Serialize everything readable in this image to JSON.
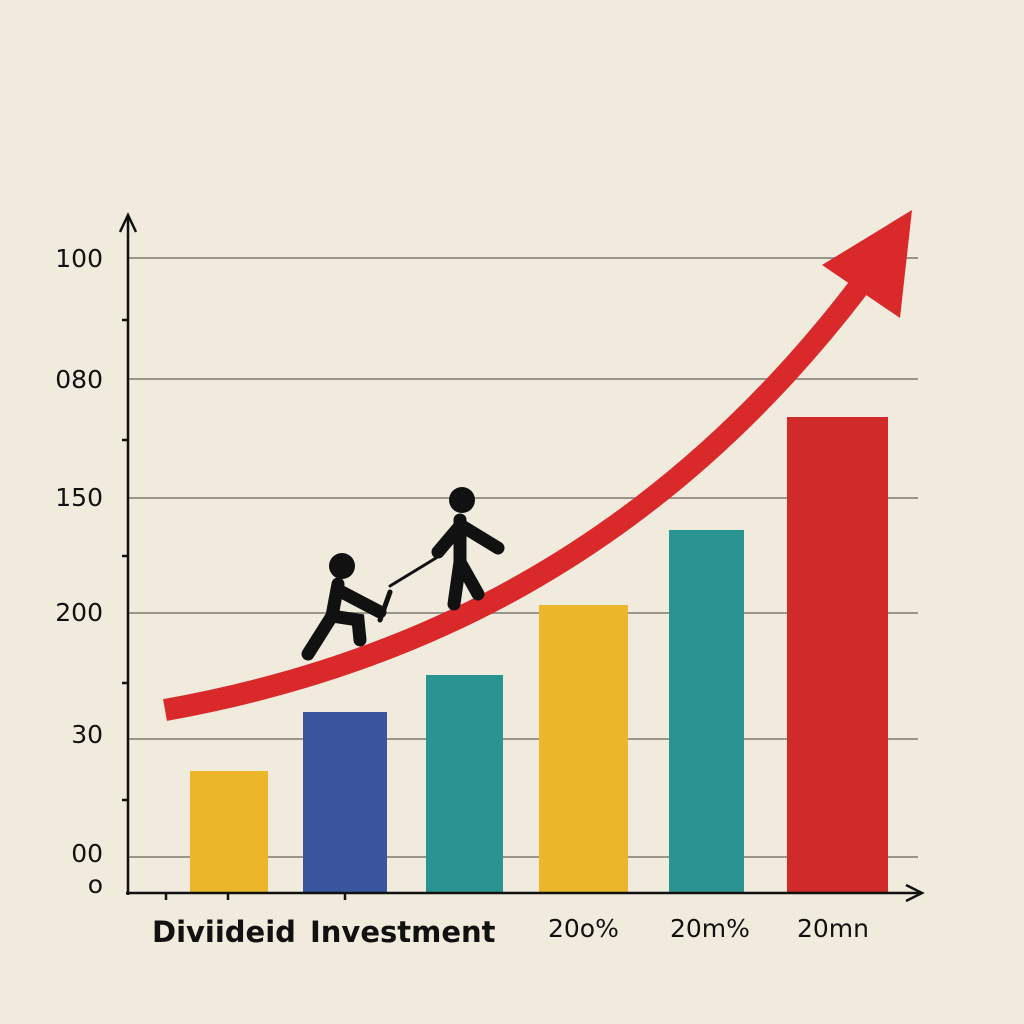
{
  "axis_labels": [
    "100",
    "080",
    "150",
    "200",
    "30",
    "00",
    "o"
  ],
  "category_labels": [
    "Diviideid",
    "Investment",
    "20o%",
    "20m%",
    "20mn"
  ]
}
